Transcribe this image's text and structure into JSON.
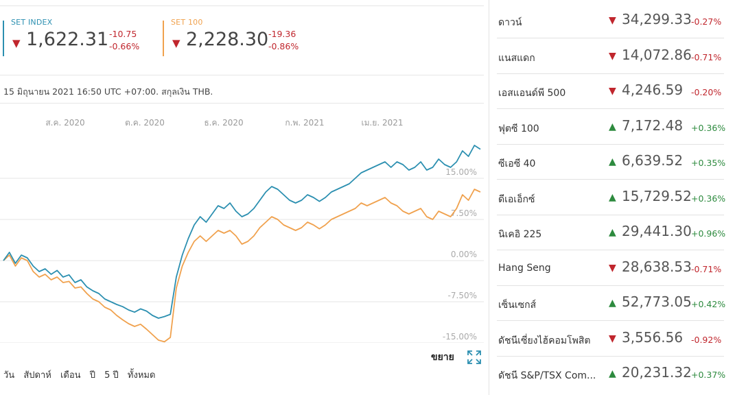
{
  "indices": [
    {
      "name": "SET INDEX",
      "value": "1,622.31",
      "change": "-10.75",
      "change_pct": "-0.66%",
      "direction": "down",
      "color": "#2b8fb0"
    },
    {
      "name": "SET 100",
      "value": "2,228.30",
      "change": "-19.36",
      "change_pct": "-0.86%",
      "direction": "down",
      "color": "#f0a14d"
    }
  ],
  "note": "15 มิถุนายน 2021 16:50 UTC +07:00. สกุลเงิน THB.",
  "chart_data": {
    "type": "line",
    "x_ticks": [
      "ส.ค. 2020",
      "ต.ค. 2020",
      "ธ.ค. 2020",
      "ก.พ. 2021",
      "เม.ย. 2021"
    ],
    "y_ticks": [
      "15.00%",
      "7.50%",
      "0.00%",
      "-7.50%",
      "-15.00%"
    ],
    "ylim": [
      -15,
      22.5
    ],
    "grid": true,
    "series": [
      {
        "name": "SET INDEX",
        "color": "#2b8fb0",
        "values": [
          0,
          1.5,
          -0.5,
          1,
          0.5,
          -1,
          -2,
          -1.5,
          -2.5,
          -1.8,
          -3,
          -2.6,
          -4,
          -3.5,
          -4.8,
          -5.5,
          -6,
          -7,
          -7.5,
          -8,
          -8.4,
          -9,
          -9.4,
          -8.8,
          -9.2,
          -10,
          -10.5,
          -10.2,
          -9.8,
          -3,
          1,
          4,
          6.5,
          8,
          7,
          8.5,
          10,
          9.5,
          10.5,
          9,
          8,
          8.5,
          9.5,
          11,
          12.5,
          13.5,
          13,
          12,
          11,
          10.5,
          11,
          12,
          11.5,
          10.8,
          11.5,
          12.5,
          13,
          13.5,
          14,
          15,
          16,
          16.5,
          17,
          17.5,
          18,
          17,
          18,
          17.5,
          16.5,
          17,
          18,
          16.5,
          17,
          18.5,
          17.5,
          17,
          18,
          20,
          19,
          21,
          20.3
        ]
      },
      {
        "name": "SET 100",
        "color": "#f0a14d",
        "values": [
          0,
          1,
          -1,
          0.5,
          0,
          -2,
          -3,
          -2.5,
          -3.5,
          -3,
          -4,
          -3.8,
          -5,
          -4.8,
          -6,
          -7,
          -7.5,
          -8.5,
          -9,
          -10,
          -10.8,
          -11.5,
          -12,
          -11.6,
          -12.5,
          -13.5,
          -14.5,
          -14.8,
          -14,
          -5,
          -1,
          1.5,
          3.5,
          4.5,
          3.5,
          4.5,
          5.5,
          5,
          5.5,
          4.5,
          3,
          3.5,
          4.5,
          6,
          7,
          8,
          7.5,
          6.5,
          6,
          5.5,
          6,
          7,
          6.5,
          5.8,
          6.5,
          7.5,
          8,
          8.5,
          9,
          9.5,
          10.5,
          10,
          10.5,
          11,
          11.5,
          10.5,
          10,
          9,
          8.5,
          9,
          9.5,
          8,
          7.5,
          9,
          8.5,
          8,
          9.5,
          12,
          11,
          13,
          12.5
        ]
      }
    ]
  },
  "expand_label": "ขยาย",
  "ranges": [
    "วัน",
    "สัปดาห์",
    "เดือน",
    "ปี",
    "5 ปี",
    "ทั้งหมด"
  ],
  "markets": [
    {
      "name": "ดาวน์",
      "value": "34,299.33",
      "change_pct": "-0.27%",
      "direction": "down"
    },
    {
      "name": "แนสแดก",
      "value": "14,072.86",
      "change_pct": "-0.71%",
      "direction": "down"
    },
    {
      "name": "เอสแอนด์พี 500",
      "value": "4,246.59",
      "change_pct": "-0.20%",
      "direction": "down"
    },
    {
      "name": "ฟุตซี 100",
      "value": "7,172.48",
      "change_pct": "+0.36%",
      "direction": "up"
    },
    {
      "name": "ซีเอซี 40",
      "value": "6,639.52",
      "change_pct": "+0.35%",
      "direction": "up"
    },
    {
      "name": "ดีเอเอ็กซ์",
      "value": "15,729.52",
      "change_pct": "+0.36%",
      "direction": "up"
    },
    {
      "name": "นิเคอิ 225",
      "value": "29,441.30",
      "change_pct": "+0.96%",
      "direction": "up"
    },
    {
      "name": "Hang Seng",
      "value": "28,638.53",
      "change_pct": "-0.71%",
      "direction": "down"
    },
    {
      "name": "เซ็นเซกส์",
      "value": "52,773.05",
      "change_pct": "+0.42%",
      "direction": "up"
    },
    {
      "name": "ดัชนีเซี่ยงไฮ้คอมโพสิต",
      "value": "3,556.56",
      "change_pct": "-0.92%",
      "direction": "down"
    },
    {
      "name": "ดัชนี S&P/TSX Com...",
      "value": "20,231.32",
      "change_pct": "+0.37%",
      "direction": "up"
    }
  ]
}
